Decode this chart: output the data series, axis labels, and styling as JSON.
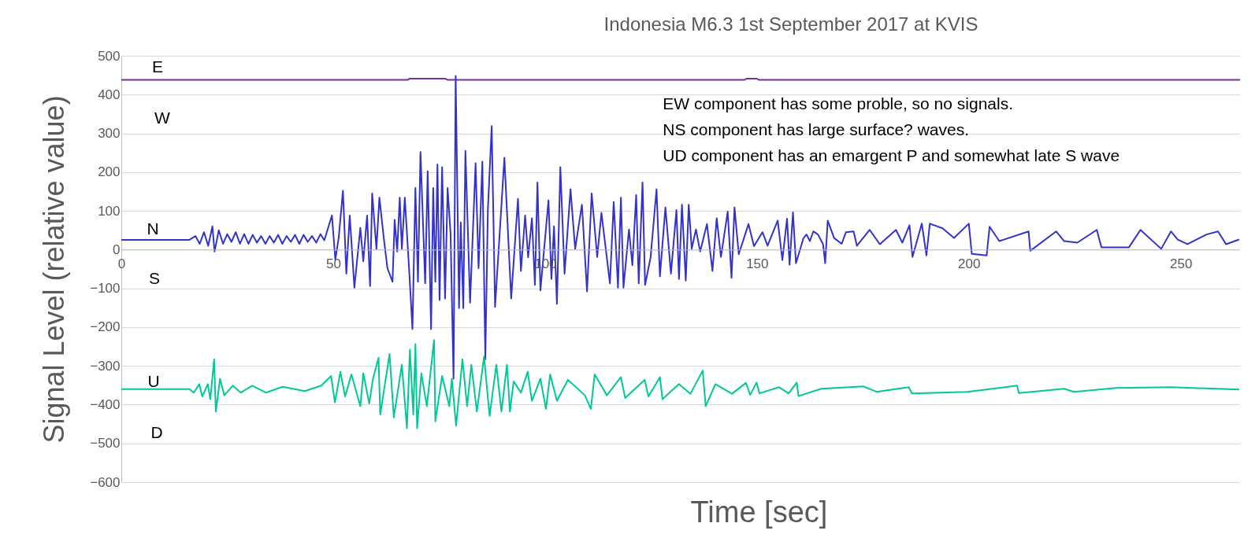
{
  "chart_data": {
    "type": "line",
    "title": "Indonesia M6.3 1st September 2017 at KVIS",
    "xlabel": "Time [sec]",
    "ylabel": "Signal Level (relative value)",
    "xlim": [
      0,
      264
    ],
    "xticks": [
      0,
      50,
      100,
      150,
      200,
      250
    ],
    "ylim": [
      -600,
      500
    ],
    "yticks": [
      -600,
      -500,
      -400,
      -300,
      -200,
      -100,
      0,
      100,
      200,
      300,
      400,
      500
    ],
    "grid": "y",
    "annotations": [
      "E",
      "W",
      "N",
      "S",
      "U",
      "D",
      "EW component has some proble, so no signals.",
      "NS component has large surface? waves.",
      "UD component has an emargent P and somewhat late S wave"
    ],
    "series": [
      {
        "color": "#7030a0",
        "x": [
          0,
          67.5,
          68,
          76.5,
          77,
          147,
          147.5,
          150,
          150.5,
          264
        ],
        "values": [
          438,
          438,
          441,
          441,
          438,
          438,
          441,
          441,
          438,
          438
        ]
      },
      {
        "color": "#3333cc",
        "x": [
          0,
          16,
          17.5,
          18.5,
          19.5,
          20.5,
          21.5,
          22,
          23,
          24,
          25,
          26,
          27,
          28,
          29,
          30,
          31,
          32,
          33,
          34,
          35,
          36,
          37,
          38,
          39,
          40,
          41,
          42,
          43,
          44,
          45,
          46,
          47,
          47.9,
          49.7,
          50.5,
          51.3,
          52.3,
          53.1,
          53.9,
          55.0,
          56.4,
          57.1,
          58.0,
          58.7,
          59.2,
          60.2,
          60.9,
          62.0,
          62.8,
          64.0,
          64.5,
          65.1,
          65.7,
          66.2,
          66.9,
          67.9,
          68.7,
          69.4,
          70.0,
          70.6,
          71.7,
          72.3,
          73.1,
          73.6,
          74.1,
          74.6,
          75.1,
          75.7,
          76.4,
          77.0,
          77.7,
          78.4,
          78.9,
          79.7,
          80.1,
          80.7,
          81.2,
          82.3,
          83.6,
          84.3,
          85.2,
          85.9,
          86.5,
          87.4,
          88.2,
          90.4,
          92.0,
          93.6,
          94.3,
          95.3,
          96.0,
          96.9,
          97.6,
          98.2,
          98.9,
          100.8,
          101.5,
          102.1,
          102.8,
          103.6,
          104.6,
          106.0,
          107.1,
          108.7,
          109.9,
          111.0,
          112.3,
          113.3,
          115.3,
          116.2,
          117.2,
          117.9,
          118.5,
          119.8,
          120.6,
          121.5,
          122.1,
          123.0,
          123.6,
          124.9,
          126.3,
          127.1,
          128.4,
          129.7,
          131.0,
          131.6,
          132.3,
          133.2,
          133.9,
          134.6,
          135.6,
          136.6,
          138.2,
          139.5,
          140.5,
          141.5,
          143.1,
          144.0,
          144.7,
          145.7,
          148.0,
          149.3,
          151.3,
          152.5,
          154.9,
          156.0,
          157.1,
          157.7,
          158.5,
          159.2,
          161.0,
          161.7,
          162.5,
          163.3,
          164.4,
          165.6,
          166.1,
          166.7,
          168.2,
          170.0,
          171.0,
          172.8,
          173.6,
          176.6,
          179.0,
          182.8,
          184.3,
          186.0,
          186.7,
          188.9,
          190.0,
          190.8,
          193.8,
          196.5,
          200.0,
          200.7,
          204.2,
          204.9,
          207.2,
          214.1,
          214.5,
          220.6,
          222.5,
          225.6,
          230.2,
          231.3,
          237.8,
          240.5,
          245.4,
          247.7,
          249.3,
          251.6,
          256.1,
          258.8,
          260.7,
          263.8
        ],
        "values": [
          25,
          25,
          35,
          15,
          45,
          10,
          60,
          -5,
          50,
          15,
          40,
          20,
          45,
          15,
          40,
          15,
          38,
          18,
          35,
          15,
          35,
          18,
          38,
          15,
          35,
          20,
          38,
          15,
          38,
          20,
          35,
          18,
          40,
          24,
          88,
          -26,
          31,
          152,
          -62,
          88,
          -98,
          56,
          -30,
          88,
          -94,
          145,
          2,
          134,
          24,
          -48,
          -83,
          77,
          -5,
          134,
          2,
          134,
          -48,
          -205,
          159,
          -83,
          252,
          -87,
          202,
          -205,
          159,
          -83,
          220,
          -130,
          213,
          -126,
          159,
          41,
          -333,
          448,
          -151,
          70,
          -151,
          255,
          -137,
          223,
          -48,
          227,
          -283,
          102,
          319,
          -148,
          237,
          -126,
          131,
          -55,
          88,
          -20,
          81,
          -91,
          173,
          -105,
          127,
          -76,
          60,
          -140,
          213,
          -62,
          156,
          2,
          116,
          -108,
          145,
          -19,
          95,
          -87,
          123,
          -98,
          134,
          -98,
          52,
          -40,
          141,
          -87,
          173,
          -91,
          -20,
          156,
          -69,
          109,
          -62,
          102,
          -76,
          116,
          -80,
          116,
          2,
          52,
          -5,
          66,
          -55,
          81,
          -19,
          98,
          -73,
          109,
          -12,
          66,
          9,
          45,
          10,
          75,
          -27,
          80,
          -39,
          96,
          -35,
          30,
          39,
          22,
          47,
          39,
          14,
          -35,
          75,
          30,
          15,
          45,
          47,
          10,
          51,
          14,
          51,
          18,
          63,
          -19,
          67,
          -15,
          67,
          55,
          30,
          67,
          -11,
          -15,
          59,
          22,
          47,
          -3,
          47,
          22,
          18,
          51,
          6,
          6,
          51,
          2,
          47,
          26,
          14,
          39,
          47,
          14,
          26
        ]
      },
      {
        "color": "#00c896",
        "x": [
          0,
          16.1,
          17.1,
          18.4,
          19.1,
          20.4,
          21.0,
          21.9,
          22.3,
          23.3,
          24.3,
          26.3,
          28.2,
          30.9,
          34.1,
          38.1,
          43.3,
          47.2,
          49.5,
          50.4,
          51.7,
          52.8,
          54.3,
          56.4,
          57.1,
          58.5,
          59.4,
          60.7,
          61.1,
          63.3,
          64.3,
          66.2,
          67.4,
          68.1,
          68.9,
          69.4,
          69.8,
          70.8,
          72.1,
          73.8,
          74.1,
          75.7,
          77.4,
          78.0,
          79.0,
          80.5,
          81.6,
          82.6,
          83.9,
          85.6,
          86.9,
          88.5,
          89.7,
          91.0,
          91.7,
          92.6,
          94.3,
          95.9,
          96.9,
          98.9,
          100.2,
          101.2,
          102.8,
          105.4,
          109.4,
          110.8,
          111.7,
          114.6,
          117.9,
          118.9,
          123.5,
          124.4,
          127.1,
          127.7,
          131.6,
          134.3,
          137.2,
          137.9,
          140.2,
          144.1,
          147.4,
          148.4,
          149.9,
          150.6,
          155.2,
          157.5,
          159.4,
          159.8,
          165.2,
          175.1,
          178.2,
          185.8,
          186.6,
          199.6,
          211.4,
          211.8,
          222.5,
          224.8,
          234.7,
          247.7,
          263.8
        ],
        "values": [
          -360,
          -360,
          -369,
          -347,
          -379,
          -347,
          -386,
          -283,
          -418,
          -333,
          -376,
          -351,
          -369,
          -351,
          -369,
          -354,
          -365,
          -351,
          -326,
          -394,
          -315,
          -379,
          -322,
          -404,
          -319,
          -397,
          -333,
          -279,
          -426,
          -269,
          -433,
          -297,
          -461,
          -258,
          -426,
          -244,
          -461,
          -319,
          -404,
          -233,
          -443,
          -326,
          -404,
          -333,
          -454,
          -283,
          -404,
          -297,
          -418,
          -276,
          -429,
          -297,
          -418,
          -297,
          -418,
          -340,
          -369,
          -315,
          -390,
          -333,
          -411,
          -322,
          -390,
          -336,
          -376,
          -411,
          -322,
          -376,
          -329,
          -383,
          -336,
          -379,
          -329,
          -386,
          -347,
          -372,
          -312,
          -404,
          -347,
          -372,
          -344,
          -375,
          -343,
          -371,
          -355,
          -371,
          -343,
          -378,
          -359,
          -353,
          -367,
          -355,
          -371,
          -367,
          -351,
          -370,
          -359,
          -367,
          -357,
          -355,
          -361
        ]
      }
    ]
  }
}
